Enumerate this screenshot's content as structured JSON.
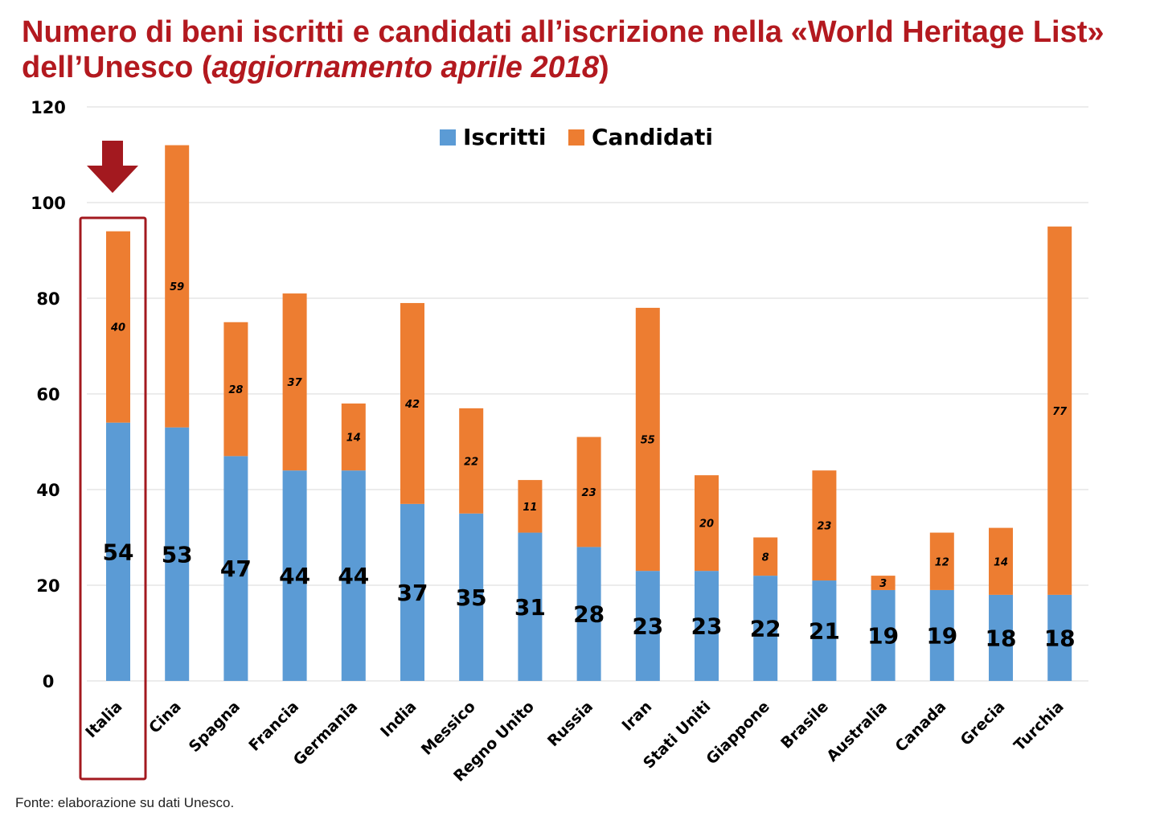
{
  "title": {
    "main": "Numero di beni iscritti e candidati all’iscrizione nella «World Heritage List» dell’Unesco (",
    "italic": "aggiornamento aprile 2018",
    "close": ")"
  },
  "source": "Fonte: elaborazione su dati Unesco.",
  "colors": {
    "iscritti": "#5b9bd5",
    "candidati": "#ed7d31",
    "highlight": "#a3191f",
    "grid": "#d9d9d9"
  },
  "chart_data": {
    "type": "bar",
    "stacked": true,
    "categories": [
      "Italia",
      "Cina",
      "Spagna",
      "Francia",
      "Germania",
      "India",
      "Messico",
      "Regno Unito",
      "Russia",
      "Iran",
      "Stati Uniti",
      "Giappone",
      "Brasile",
      "Australia",
      "Canada",
      "Grecia",
      "Turchia"
    ],
    "series": [
      {
        "name": "Iscritti",
        "color": "#5b9bd5",
        "values": [
          54,
          53,
          47,
          44,
          44,
          37,
          35,
          31,
          28,
          23,
          23,
          22,
          21,
          19,
          19,
          18,
          18
        ]
      },
      {
        "name": "Candidati",
        "color": "#ed7d31",
        "values": [
          40,
          59,
          28,
          37,
          14,
          42,
          22,
          11,
          23,
          55,
          20,
          8,
          23,
          3,
          12,
          14,
          77
        ]
      }
    ],
    "yticks": [
      "0",
      "20",
      "40",
      "60",
      "80",
      "100",
      "120"
    ],
    "ylim": [
      0,
      120
    ],
    "grid": true,
    "legend_position": "top-center",
    "highlighted_category": "Italia"
  }
}
